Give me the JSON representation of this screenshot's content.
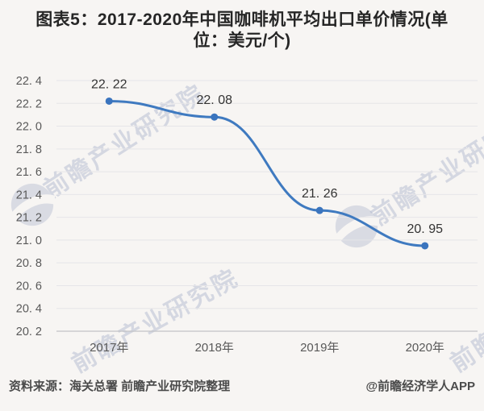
{
  "title": {
    "line1": "图表5：2017-2020年中国咖啡机平均出口单价情况(单",
    "line2": "位：美元/个)",
    "full": "图表5：2017-2020年中国咖啡机平均出口单价情况(单位：美元/个)"
  },
  "chart_data": {
    "type": "line",
    "title": "2017-2020年中国咖啡机平均出口单价情况",
    "unit": "美元/个",
    "categories": [
      "2017年",
      "2018年",
      "2019年",
      "2020年"
    ],
    "values": [
      22.22,
      22.08,
      21.26,
      20.95
    ],
    "value_labels": [
      "22. 22",
      "22. 08",
      "21. 26",
      "20. 95"
    ],
    "y_ticks": [
      22.4,
      22.2,
      22.0,
      21.8,
      21.6,
      21.4,
      21.2,
      21.0,
      20.8,
      20.6,
      20.4,
      20.2
    ],
    "y_tick_labels": [
      "22. 4",
      "22. 2",
      "22. 0",
      "21. 8",
      "21. 6",
      "21. 4",
      "21. 2",
      "21. 0",
      "20. 8",
      "20. 6",
      "20. 4",
      "20. 2"
    ],
    "ylim": [
      20.2,
      22.4
    ],
    "grid": true,
    "legend": "none",
    "smooth": true,
    "line_color": "#3f7ac0",
    "marker_color": "#3a74be",
    "grid_color": "#e6e5e8",
    "axis_color": "#c2c2c6"
  },
  "footer": {
    "source": "资料来源：海关总署 前瞻产业研究院整理",
    "credit": "@前瞻经济学人APP"
  },
  "watermark": {
    "text": "前瞻产业研究院",
    "color": "rgba(165,175,200,0.42)"
  }
}
